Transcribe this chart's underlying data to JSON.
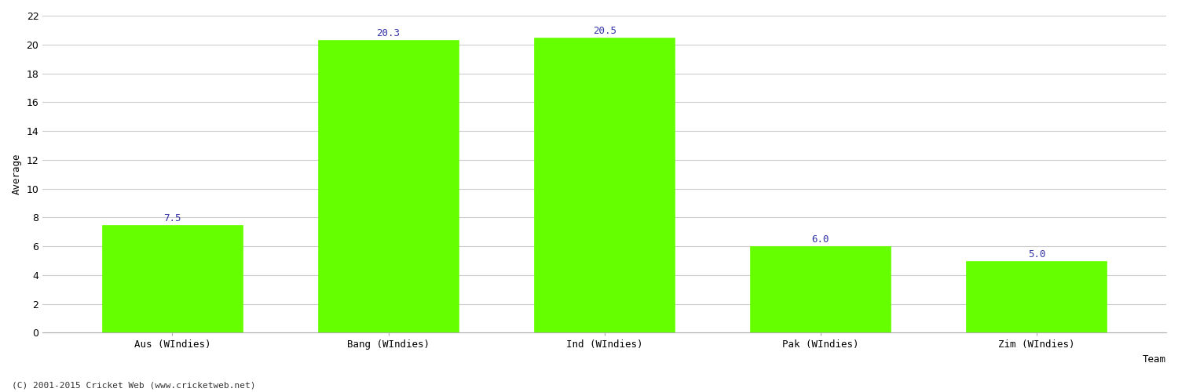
{
  "categories": [
    "Aus (WIndies)",
    "Bang (WIndies)",
    "Ind (WIndies)",
    "Pak (WIndies)",
    "Zim (WIndies)"
  ],
  "values": [
    7.5,
    20.3,
    20.5,
    6.0,
    5.0
  ],
  "bar_color": "#66FF00",
  "bar_edge_color": "#66FF00",
  "label_color": "#3333AA",
  "xlabel": "Team",
  "ylabel": "Average",
  "ylim": [
    0,
    22
  ],
  "yticks": [
    0,
    2,
    4,
    6,
    8,
    10,
    12,
    14,
    16,
    18,
    20,
    22
  ],
  "grid_color": "#CCCCCC",
  "background_color": "#FFFFFF",
  "figure_background": "#FFFFFF",
  "footer_text": "(C) 2001-2015 Cricket Web (www.cricketweb.net)",
  "label_fontsize": 9,
  "axis_label_fontsize": 9,
  "tick_fontsize": 9,
  "footer_fontsize": 8,
  "bar_width": 0.65
}
